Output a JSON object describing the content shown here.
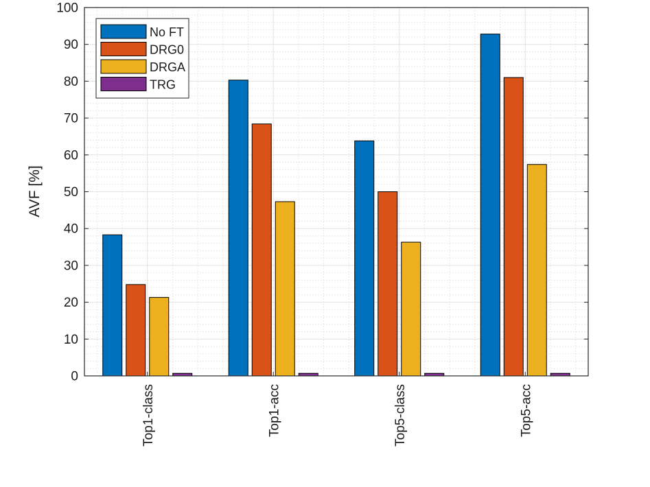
{
  "chart_data": {
    "type": "bar",
    "title": "",
    "xlabel": "",
    "ylabel": "AVF [%]",
    "ylim": [
      0,
      100
    ],
    "yticks": [
      0,
      10,
      20,
      30,
      40,
      50,
      60,
      70,
      80,
      90,
      100
    ],
    "grid": true,
    "minor_grid": true,
    "legend_position": "top-left",
    "categories": [
      "Top1-class",
      "Top1-acc",
      "Top5-class",
      "Top5-acc"
    ],
    "series": [
      {
        "name": "No FT",
        "color": "#0072BD",
        "values": [
          38.3,
          80.3,
          63.8,
          92.8
        ]
      },
      {
        "name": "DRG0",
        "color": "#D95319",
        "values": [
          24.8,
          68.4,
          50.0,
          81.0
        ]
      },
      {
        "name": "DRGA",
        "color": "#EDB120",
        "values": [
          21.3,
          47.3,
          36.3,
          57.4
        ]
      },
      {
        "name": "TRG",
        "color": "#7E2F8E",
        "values": [
          0.7,
          0.7,
          0.7,
          0.7
        ]
      }
    ]
  }
}
